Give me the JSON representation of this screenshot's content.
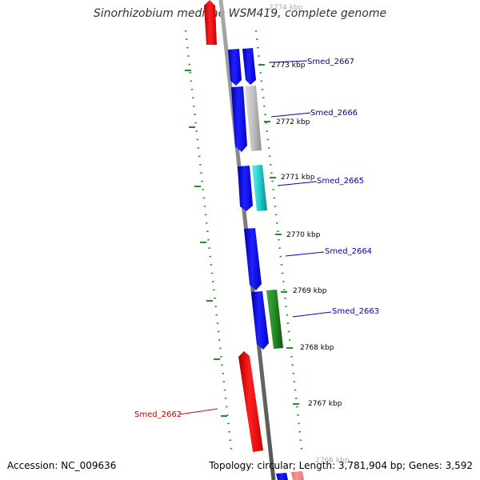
{
  "title": "Sinorhizobium medicae WSM419, complete genome",
  "footer": {
    "accession": "Accession: NC_009636",
    "stats": "Topology: circular; Length: 3,781,904 bp; Genes: 3,592"
  },
  "ticks": [
    {
      "label": "2774 kbp",
      "faded": true
    },
    {
      "label": "2773 kbp"
    },
    {
      "label": "2772 kbp"
    },
    {
      "label": "2771 kbp"
    },
    {
      "label": "2770 kbp"
    },
    {
      "label": "2769 kbp"
    },
    {
      "label": "2768 kbp"
    },
    {
      "label": "2767 kbp"
    },
    {
      "label": "2766 kbp",
      "faded": true
    }
  ],
  "gene_labels": [
    {
      "name": "Smed_2667",
      "color": "#0000aa"
    },
    {
      "name": "Smed_2666",
      "color": "#0000aa"
    },
    {
      "name": "Smed_2665",
      "color": "#0000aa"
    },
    {
      "name": "Smed_2664",
      "color": "#0000aa"
    },
    {
      "name": "Smed_2663",
      "color": "#0000aa"
    },
    {
      "name": "Smed_2662",
      "color": "#cc0000"
    }
  ],
  "colors": {
    "forward_strand": "#0000ee",
    "reverse_strand": "#ee0000",
    "backbone": "#888888",
    "rna_gray": "#bbbbbb",
    "rna_cyan": "#22cccc",
    "rna_green": "#228b22",
    "ruler_green": "#2a8a2a"
  }
}
